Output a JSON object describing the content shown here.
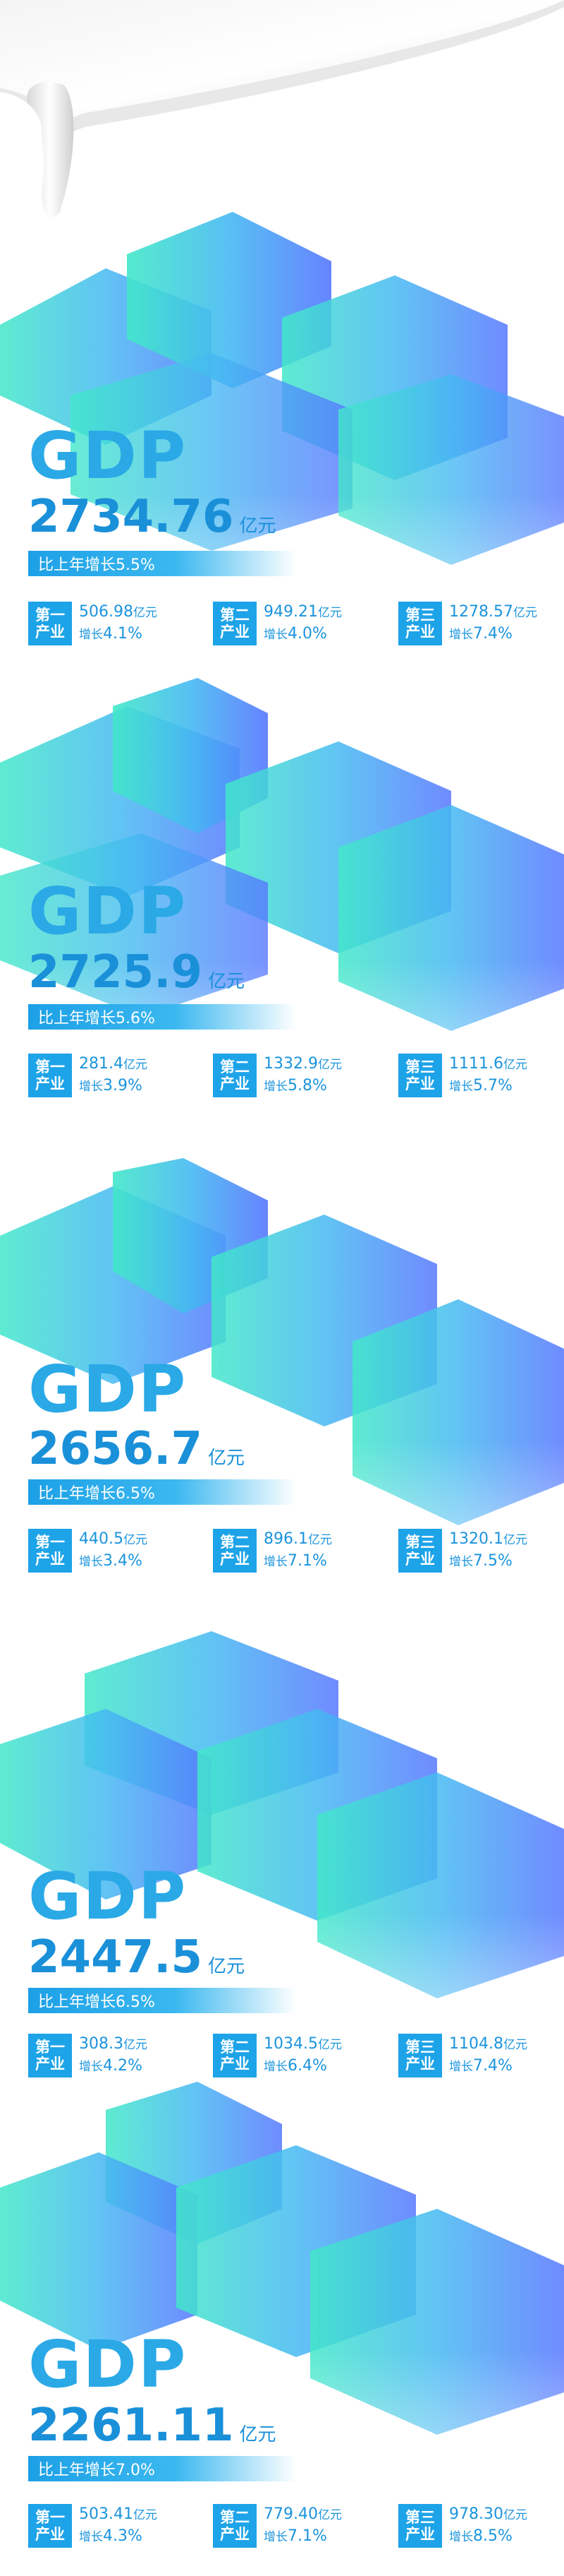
{
  "colors": {
    "accent": "#1da3e8",
    "gradient_start": "#3fe7c8",
    "gradient_end": "#4f7bff",
    "text": "#1b94dd"
  },
  "regions": [
    {
      "gdp_label": "GDP",
      "gdp_value": "2734.76",
      "unit": "亿元",
      "growth": "比上年增长5.5%",
      "industries": [
        {
          "badge_line1": "第一",
          "badge_line2": "产业",
          "value": "506.98",
          "unit": "亿元",
          "rate_label": "增长",
          "rate": "4.1%"
        },
        {
          "badge_line1": "第二",
          "badge_line2": "产业",
          "value": "949.21",
          "unit": "亿元",
          "rate_label": "增长",
          "rate": "4.0%"
        },
        {
          "badge_line1": "第三",
          "badge_line2": "产业",
          "value": "1278.57",
          "unit": "亿元",
          "rate_label": "增长",
          "rate": "7.4%"
        }
      ]
    },
    {
      "gdp_label": "GDP",
      "gdp_value": "2725.9",
      "unit": "亿元",
      "growth": "比上年增长5.6%",
      "industries": [
        {
          "badge_line1": "第一",
          "badge_line2": "产业",
          "value": "281.4",
          "unit": "亿元",
          "rate_label": "增长",
          "rate": "3.9%"
        },
        {
          "badge_line1": "第二",
          "badge_line2": "产业",
          "value": "1332.9",
          "unit": "亿元",
          "rate_label": "增长",
          "rate": "5.8%"
        },
        {
          "badge_line1": "第三",
          "badge_line2": "产业",
          "value": "1111.6",
          "unit": "亿元",
          "rate_label": "增长",
          "rate": "5.7%"
        }
      ]
    },
    {
      "gdp_label": "GDP",
      "gdp_value": "2656.7",
      "unit": "亿元",
      "growth": "比上年增长6.5%",
      "industries": [
        {
          "badge_line1": "第一",
          "badge_line2": "产业",
          "value": "440.5",
          "unit": "亿元",
          "rate_label": "增长",
          "rate": "3.4%"
        },
        {
          "badge_line1": "第二",
          "badge_line2": "产业",
          "value": "896.1",
          "unit": "亿元",
          "rate_label": "增长",
          "rate": "7.1%"
        },
        {
          "badge_line1": "第三",
          "badge_line2": "产业",
          "value": "1320.1",
          "unit": "亿元",
          "rate_label": "增长",
          "rate": "7.5%"
        }
      ]
    },
    {
      "gdp_label": "GDP",
      "gdp_value": "2447.5",
      "unit": "亿元",
      "growth": "比上年增长6.5%",
      "industries": [
        {
          "badge_line1": "第一",
          "badge_line2": "产业",
          "value": "308.3",
          "unit": "亿元",
          "rate_label": "增长",
          "rate": "4.2%"
        },
        {
          "badge_line1": "第二",
          "badge_line2": "产业",
          "value": "1034.5",
          "unit": "亿元",
          "rate_label": "增长",
          "rate": "6.4%"
        },
        {
          "badge_line1": "第三",
          "badge_line2": "产业",
          "value": "1104.8",
          "unit": "亿元",
          "rate_label": "增长",
          "rate": "7.4%"
        }
      ]
    },
    {
      "gdp_label": "GDP",
      "gdp_value": "2261.11",
      "unit": "亿元",
      "growth": "比上年增长7.0%",
      "industries": [
        {
          "badge_line1": "第一",
          "badge_line2": "产业",
          "value": "503.41",
          "unit": "亿元",
          "rate_label": "增长",
          "rate": "4.3%"
        },
        {
          "badge_line1": "第二",
          "badge_line2": "产业",
          "value": "779.40",
          "unit": "亿元",
          "rate_label": "增长",
          "rate": "7.1%"
        },
        {
          "badge_line1": "第三",
          "badge_line2": "产业",
          "value": "978.30",
          "unit": "亿元",
          "rate_label": "增长",
          "rate": "8.5%"
        }
      ]
    }
  ]
}
